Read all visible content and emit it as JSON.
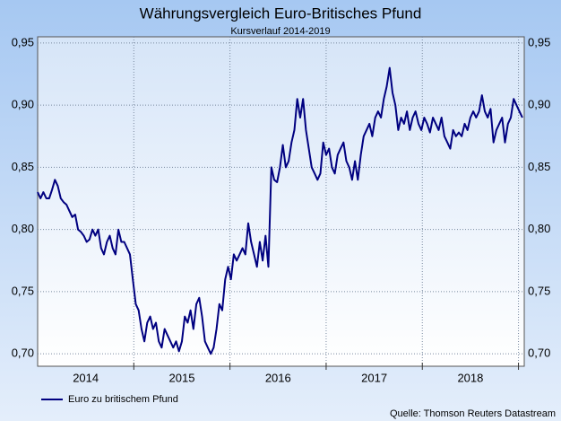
{
  "chart_data": {
    "type": "line",
    "title": "Währungsvergleich Euro-Britisches Pfund",
    "subtitle": "Kursverlauf 2014-2019",
    "source": "Quelle: Thomson Reuters Datastream",
    "xlim": [
      2014,
      2019.06
    ],
    "ylim": [
      0.69,
      0.955
    ],
    "yticks": [
      {
        "value": 0.7,
        "label": "0,70"
      },
      {
        "value": 0.75,
        "label": "0,75"
      },
      {
        "value": 0.8,
        "label": "0,80"
      },
      {
        "value": 0.85,
        "label": "0,85"
      },
      {
        "value": 0.9,
        "label": "0,90"
      },
      {
        "value": 0.95,
        "label": "0,95"
      }
    ],
    "xticks": [
      {
        "value": 2014.5,
        "label": "2014"
      },
      {
        "value": 2015.5,
        "label": "2015"
      },
      {
        "value": 2016.5,
        "label": "2016"
      },
      {
        "value": 2017.5,
        "label": "2017"
      },
      {
        "value": 2018.5,
        "label": "2018"
      }
    ],
    "xgrid_lines": [
      2015,
      2016,
      2017,
      2018,
      2019
    ],
    "grid": true,
    "legend": "bottom-left",
    "x": [
      2014.0,
      2014.03,
      2014.06,
      2014.09,
      2014.12,
      2014.15,
      2014.18,
      2014.21,
      2014.24,
      2014.27,
      2014.3,
      2014.33,
      2014.36,
      2014.39,
      2014.42,
      2014.45,
      2014.48,
      2014.51,
      2014.54,
      2014.57,
      2014.6,
      2014.63,
      2014.66,
      2014.69,
      2014.72,
      2014.75,
      2014.78,
      2014.81,
      2014.84,
      2014.87,
      2014.9,
      2014.93,
      2014.96,
      2014.99,
      2015.02,
      2015.05,
      2015.08,
      2015.11,
      2015.14,
      2015.17,
      2015.2,
      2015.23,
      2015.26,
      2015.29,
      2015.32,
      2015.35,
      2015.38,
      2015.41,
      2015.44,
      2015.47,
      2015.5,
      2015.53,
      2015.56,
      2015.59,
      2015.62,
      2015.65,
      2015.68,
      2015.71,
      2015.74,
      2015.77,
      2015.8,
      2015.83,
      2015.86,
      2015.89,
      2015.92,
      2015.95,
      2015.98,
      2016.01,
      2016.04,
      2016.07,
      2016.1,
      2016.13,
      2016.16,
      2016.19,
      2016.22,
      2016.25,
      2016.28,
      2016.31,
      2016.34,
      2016.37,
      2016.4,
      2016.43,
      2016.46,
      2016.49,
      2016.52,
      2016.55,
      2016.58,
      2016.61,
      2016.64,
      2016.67,
      2016.7,
      2016.73,
      2016.76,
      2016.79,
      2016.82,
      2016.85,
      2016.88,
      2016.91,
      2016.94,
      2016.97,
      2017.0,
      2017.03,
      2017.06,
      2017.09,
      2017.12,
      2017.15,
      2017.18,
      2017.21,
      2017.24,
      2017.27,
      2017.3,
      2017.33,
      2017.36,
      2017.39,
      2017.42,
      2017.45,
      2017.48,
      2017.51,
      2017.54,
      2017.57,
      2017.6,
      2017.63,
      2017.66,
      2017.69,
      2017.72,
      2017.75,
      2017.78,
      2017.81,
      2017.84,
      2017.87,
      2017.9,
      2017.93,
      2017.96,
      2017.99,
      2018.02,
      2018.05,
      2018.08,
      2018.11,
      2018.14,
      2018.17,
      2018.2,
      2018.23,
      2018.26,
      2018.29,
      2018.32,
      2018.35,
      2018.38,
      2018.41,
      2018.44,
      2018.47,
      2018.5,
      2018.53,
      2018.56,
      2018.59,
      2018.62,
      2018.65,
      2018.68,
      2018.71,
      2018.74,
      2018.77,
      2018.8,
      2018.83,
      2018.86,
      2018.89,
      2018.92,
      2018.95,
      2018.98,
      2019.01,
      2019.04
    ],
    "series": [
      {
        "name": "Euro zu britischem Pfund",
        "color": "#000080",
        "values": [
          0.83,
          0.825,
          0.83,
          0.825,
          0.825,
          0.832,
          0.84,
          0.835,
          0.825,
          0.822,
          0.82,
          0.815,
          0.81,
          0.812,
          0.8,
          0.798,
          0.795,
          0.79,
          0.792,
          0.8,
          0.795,
          0.8,
          0.785,
          0.78,
          0.79,
          0.795,
          0.785,
          0.78,
          0.8,
          0.79,
          0.79,
          0.785,
          0.78,
          0.76,
          0.74,
          0.735,
          0.72,
          0.71,
          0.725,
          0.73,
          0.72,
          0.725,
          0.71,
          0.705,
          0.72,
          0.715,
          0.71,
          0.705,
          0.71,
          0.702,
          0.71,
          0.73,
          0.725,
          0.735,
          0.72,
          0.74,
          0.745,
          0.73,
          0.71,
          0.705,
          0.7,
          0.705,
          0.72,
          0.74,
          0.735,
          0.76,
          0.77,
          0.76,
          0.78,
          0.775,
          0.78,
          0.785,
          0.78,
          0.805,
          0.79,
          0.78,
          0.77,
          0.79,
          0.775,
          0.795,
          0.77,
          0.85,
          0.84,
          0.838,
          0.85,
          0.868,
          0.85,
          0.855,
          0.87,
          0.88,
          0.905,
          0.89,
          0.905,
          0.88,
          0.865,
          0.85,
          0.845,
          0.84,
          0.845,
          0.87,
          0.86,
          0.865,
          0.85,
          0.845,
          0.86,
          0.865,
          0.87,
          0.855,
          0.85,
          0.84,
          0.855,
          0.84,
          0.86,
          0.875,
          0.88,
          0.885,
          0.875,
          0.89,
          0.895,
          0.89,
          0.905,
          0.915,
          0.93,
          0.91,
          0.9,
          0.88,
          0.89,
          0.885,
          0.895,
          0.88,
          0.89,
          0.895,
          0.885,
          0.88,
          0.89,
          0.885,
          0.878,
          0.89,
          0.885,
          0.88,
          0.89,
          0.875,
          0.87,
          0.865,
          0.88,
          0.875,
          0.878,
          0.875,
          0.885,
          0.88,
          0.89,
          0.895,
          0.89,
          0.895,
          0.908,
          0.895,
          0.89,
          0.897,
          0.87,
          0.88,
          0.885,
          0.89,
          0.87,
          0.885,
          0.89,
          0.905,
          0.9,
          0.895,
          0.89
        ]
      }
    ]
  }
}
